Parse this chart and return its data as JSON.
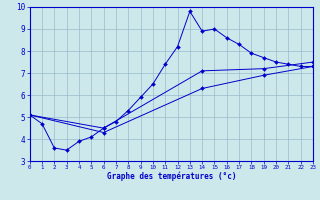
{
  "xlabel": "Graphe des températures (°c)",
  "bg_color": "#cce8ea",
  "line_color": "#0000cc",
  "grid_color": "#99bbcc",
  "line1_x": [
    0,
    1,
    2,
    3,
    4,
    5,
    6,
    7,
    8,
    9,
    10,
    11,
    12,
    13,
    14,
    15,
    16,
    17,
    18,
    19,
    20,
    21,
    22,
    23
  ],
  "line1_y": [
    5.1,
    4.7,
    3.6,
    3.5,
    3.9,
    4.1,
    4.5,
    4.8,
    5.3,
    5.9,
    6.5,
    7.4,
    8.2,
    9.8,
    8.9,
    9.0,
    8.6,
    8.3,
    7.9,
    7.7,
    7.5,
    7.4,
    7.3,
    7.3
  ],
  "line2_x": [
    0,
    6,
    14,
    19,
    23
  ],
  "line2_y": [
    5.1,
    4.5,
    7.1,
    7.2,
    7.5
  ],
  "line3_x": [
    0,
    6,
    14,
    19,
    23
  ],
  "line3_y": [
    5.1,
    4.3,
    6.3,
    6.9,
    7.3
  ],
  "xlim": [
    0,
    23
  ],
  "ylim": [
    3,
    10
  ],
  "yticks": [
    3,
    4,
    5,
    6,
    7,
    8,
    9,
    10
  ],
  "xtick_labels": [
    "0",
    "1",
    "2",
    "3",
    "4",
    "5",
    "6",
    "7",
    "8",
    "9",
    "10",
    "11",
    "12",
    "13",
    "14",
    "15",
    "16",
    "17",
    "18",
    "19",
    "20",
    "21",
    "22",
    "23"
  ]
}
